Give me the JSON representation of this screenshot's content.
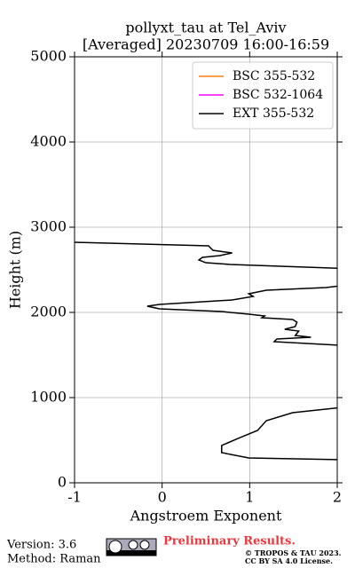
{
  "chart_data": {
    "type": "line",
    "title": "pollyxt_tau at Tel_Aviv",
    "subtitle": "[Averaged] 20230709 16:00-16:59",
    "xlabel": "Angstroem Exponent",
    "ylabel": "Height (m)",
    "xlim": [
      -1,
      2
    ],
    "ylim": [
      0,
      5000
    ],
    "xticks": [
      -1,
      0,
      1,
      2
    ],
    "yticks": [
      0,
      1000,
      2000,
      3000,
      4000,
      5000
    ],
    "grid": true,
    "legend": "upper right",
    "series": [
      {
        "name": "BSC 355-532",
        "color": "#ff7f0e",
        "x": [],
        "y": []
      },
      {
        "name": "BSC 532-1064",
        "color": "#ff00ff",
        "x": [],
        "y": []
      },
      {
        "name": "EXT 355-532",
        "color": "#000000",
        "x": [
          -1,
          0.53,
          0.58,
          0.8,
          0.66,
          0.46,
          0.42,
          0.5,
          0.78,
          2.1,
          null,
          2.1,
          1.87,
          1.19,
          0.99,
          1.04,
          0.8,
          -0.03,
          -0.17,
          -0.03,
          0.68,
          0.99,
          1.17,
          1.14,
          1.49,
          1.54,
          1.52,
          1.4,
          1.56,
          1.52,
          1.7,
          1.5,
          1.31,
          1.28,
          2.1,
          null,
          2.1,
          1.49,
          1.19,
          1.09,
          0.89,
          0.68,
          0.68,
          0.99,
          2.1
        ],
        "y": [
          2823,
          2781,
          2729,
          2698,
          2667,
          2646,
          2615,
          2583,
          2563,
          2515,
          null,
          2320,
          2292,
          2260,
          2219,
          2188,
          2146,
          2094,
          2073,
          2042,
          2010,
          1979,
          1958,
          1938,
          1917,
          1885,
          1833,
          1802,
          1781,
          1729,
          1708,
          1698,
          1688,
          1656,
          1610,
          null,
          890,
          823,
          729,
          615,
          531,
          438,
          354,
          292,
          270
        ]
      }
    ]
  },
  "footer": {
    "version": "Version: 3.6",
    "method": "Method: Raman",
    "status": "Preliminary Results.",
    "license_1": "© TROPOS & TAU 2023.",
    "license_2": "CC BY SA 4.0 License."
  }
}
